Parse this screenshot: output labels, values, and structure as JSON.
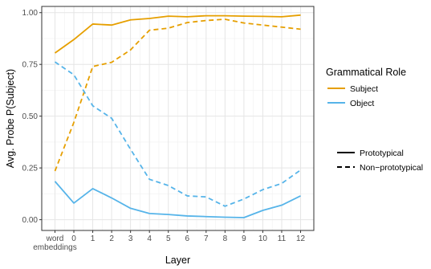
{
  "chart_data": {
    "type": "line",
    "title": "",
    "xlabel": "Layer",
    "ylabel": "Avg. Probe P(Subject)",
    "ylim": [
      0,
      1.03
    ],
    "grid": true,
    "categories": [
      "word\nembeddings",
      "0",
      "1",
      "2",
      "3",
      "4",
      "5",
      "6",
      "7",
      "8",
      "9",
      "10",
      "11",
      "12"
    ],
    "x": [
      -1,
      0,
      1,
      2,
      3,
      4,
      5,
      6,
      7,
      8,
      9,
      10,
      11,
      12
    ],
    "yticks": [
      0.0,
      0.25,
      0.5,
      0.75,
      1.0
    ],
    "ytick_labels": [
      "0.00",
      "0.25",
      "0.50",
      "0.75",
      "1.00"
    ],
    "series": [
      {
        "role": "Subject",
        "prototypicality": "Prototypical",
        "color": "#E69F00",
        "linestyle": "solid",
        "values": [
          0.805,
          0.87,
          0.945,
          0.94,
          0.965,
          0.972,
          0.983,
          0.98,
          0.985,
          0.985,
          0.983,
          0.982,
          0.98,
          0.988
        ]
      },
      {
        "role": "Subject",
        "prototypicality": "Non-prototypical",
        "color": "#E69F00",
        "linestyle": "dashed",
        "values": [
          0.235,
          0.47,
          0.74,
          0.76,
          0.82,
          0.915,
          0.925,
          0.952,
          0.962,
          0.968,
          0.95,
          0.94,
          0.93,
          0.92
        ]
      },
      {
        "role": "Object",
        "prototypicality": "Prototypical",
        "color": "#56B4E9",
        "linestyle": "solid",
        "values": [
          0.185,
          0.08,
          0.15,
          0.105,
          0.055,
          0.03,
          0.025,
          0.018,
          0.015,
          0.012,
          0.01,
          0.045,
          0.07,
          0.115
        ]
      },
      {
        "role": "Object",
        "prototypicality": "Non-prototypical",
        "color": "#56B4E9",
        "linestyle": "dashed",
        "values": [
          0.762,
          0.7,
          0.55,
          0.49,
          0.34,
          0.195,
          0.165,
          0.115,
          0.11,
          0.065,
          0.1,
          0.145,
          0.175,
          0.24
        ]
      }
    ],
    "legend": {
      "position": "right",
      "color_title": "Grammatical Role",
      "color_entries": [
        {
          "label": "Subject",
          "color": "#E69F00"
        },
        {
          "label": "Object",
          "color": "#56B4E9"
        }
      ],
      "linetype_entries": [
        {
          "label": "Prototypical",
          "linestyle": "solid"
        },
        {
          "label": "Non−prototypical",
          "linestyle": "dashed"
        }
      ]
    }
  }
}
